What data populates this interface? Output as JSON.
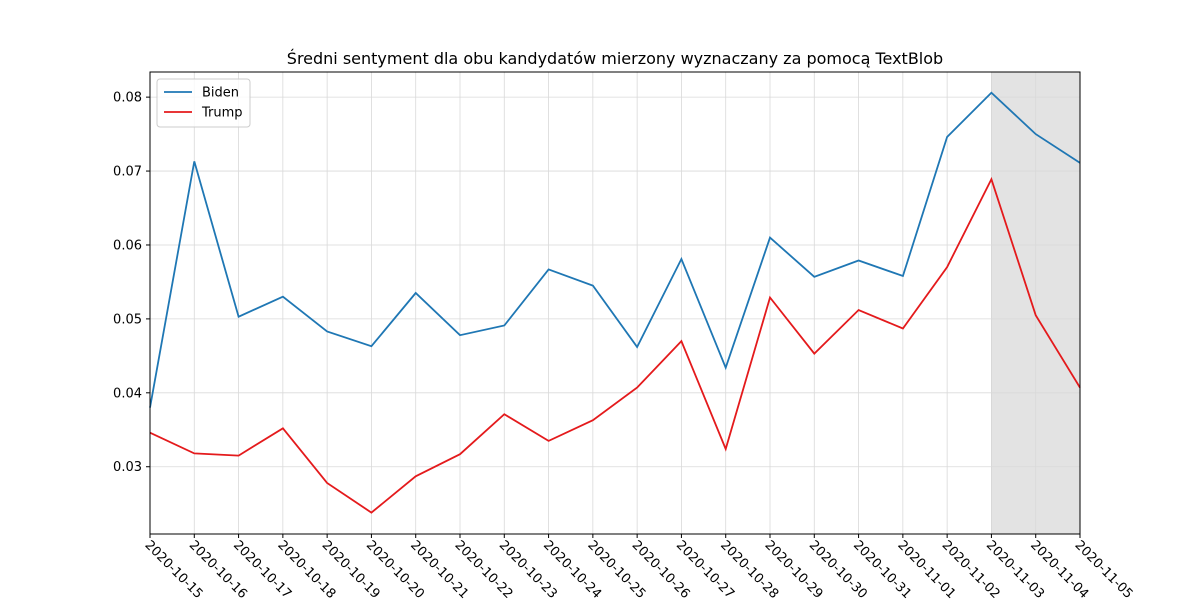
{
  "chart_data": {
    "type": "line",
    "title": "Średni sentyment dla obu kandydatów mierzony wyznaczany za pomocą TextBlob",
    "x": [
      "2020-10-15",
      "2020-10-16",
      "2020-10-17",
      "2020-10-18",
      "2020-10-19",
      "2020-10-20",
      "2020-10-21",
      "2020-10-22",
      "2020-10-23",
      "2020-10-24",
      "2020-10-25",
      "2020-10-26",
      "2020-10-27",
      "2020-10-28",
      "2020-10-29",
      "2020-10-30",
      "2020-10-31",
      "2020-11-01",
      "2020-11-02",
      "2020-11-03",
      "2020-11-04",
      "2020-11-05"
    ],
    "series": [
      {
        "name": "Biden",
        "color": "#1f77b4",
        "values": [
          0.038,
          0.0713,
          0.0503,
          0.053,
          0.0483,
          0.0463,
          0.0535,
          0.0478,
          0.0491,
          0.0567,
          0.0545,
          0.0462,
          0.0581,
          0.0434,
          0.061,
          0.0557,
          0.0579,
          0.0558,
          0.0746,
          0.0806,
          0.075,
          0.0711
        ]
      },
      {
        "name": "Trump",
        "color": "#e41a1c",
        "values": [
          0.0346,
          0.0318,
          0.0315,
          0.0352,
          0.0278,
          0.0238,
          0.0287,
          0.0317,
          0.0371,
          0.0335,
          0.0363,
          0.0407,
          0.047,
          0.0324,
          0.0529,
          0.0453,
          0.0512,
          0.0487,
          0.057,
          0.0689,
          0.0505,
          0.0407
        ]
      }
    ],
    "ylim": [
      0.0209,
      0.0834
    ],
    "yticks": [
      0.03,
      0.04,
      0.05,
      0.06,
      0.07,
      0.08
    ],
    "shaded_span": [
      "2020-11-03",
      "2020-11-05"
    ],
    "grid": true,
    "legend": "upper left"
  }
}
